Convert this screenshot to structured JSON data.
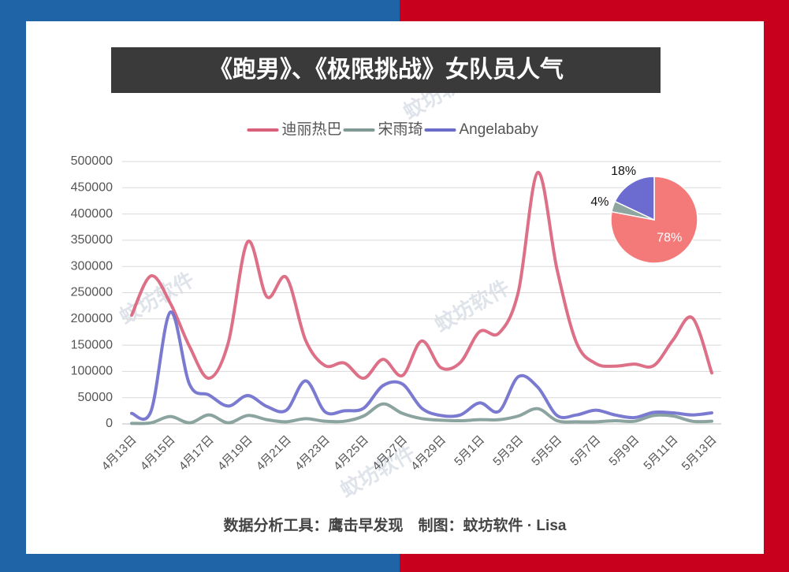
{
  "chart_data": [
    {
      "type": "line",
      "title": "《跑男》、《极限挑战》女队员人气",
      "categories": [
        "4月13日",
        null,
        "4月15日",
        null,
        "4月17日",
        null,
        "4月19日",
        null,
        "4月21日",
        null,
        "4月23日",
        null,
        "4月25日",
        null,
        "4月27日",
        null,
        "4月29日",
        null,
        "5月1日",
        null,
        "5月3日",
        null,
        "5月5日",
        null,
        "5月7日",
        null,
        "5月9日",
        null,
        "5月11日",
        null,
        "5月13日"
      ],
      "series": [
        {
          "name": "迪丽热巴",
          "color": "#d9607a",
          "values": [
            207000,
            282000,
            230000,
            147000,
            87000,
            155000,
            347000,
            242000,
            279000,
            159000,
            111000,
            116000,
            87000,
            123000,
            92000,
            158000,
            107000,
            117000,
            176000,
            173000,
            252000,
            479000,
            294000,
            155000,
            115000,
            110000,
            114000,
            111000,
            160000,
            202000,
            97000
          ]
        },
        {
          "name": "宋雨琦",
          "color": "#7f9a95",
          "values": [
            1000,
            2000,
            14000,
            2000,
            17000,
            2000,
            16000,
            8000,
            4000,
            10000,
            5000,
            5000,
            15000,
            38000,
            20000,
            10000,
            7000,
            6000,
            8000,
            8000,
            15000,
            29000,
            6000,
            4000,
            4000,
            6000,
            5000,
            16000,
            15000,
            5000,
            5000
          ]
        },
        {
          "name": "Angelababy",
          "color": "#6b6bcc",
          "values": [
            20000,
            24000,
            213000,
            75000,
            55000,
            34000,
            54000,
            33000,
            26000,
            82000,
            23000,
            25000,
            30000,
            73000,
            76000,
            30000,
            16000,
            17000,
            40000,
            24000,
            90000,
            70000,
            16000,
            17000,
            26000,
            17000,
            12000,
            22000,
            21000,
            17000,
            21000
          ]
        }
      ],
      "ylim": [
        0,
        500000
      ],
      "yticks": [
        0,
        50000,
        100000,
        150000,
        200000,
        250000,
        300000,
        350000,
        400000,
        450000,
        500000
      ],
      "grid": true,
      "legend": "top",
      "footer": "数据分析工具：鹰击早发现　制图：蚊坊软件 · Lisa",
      "watermark": "蚊坊软件"
    },
    {
      "type": "pie",
      "categories": [
        "迪丽热巴",
        "宋雨琦",
        "Angelababy"
      ],
      "values": [
        78,
        4,
        18
      ],
      "value_labels": [
        "78%",
        "4%",
        "18%"
      ],
      "colors": [
        "#f47a7a",
        "#8fa5a0",
        "#6b6bd0"
      ]
    }
  ]
}
